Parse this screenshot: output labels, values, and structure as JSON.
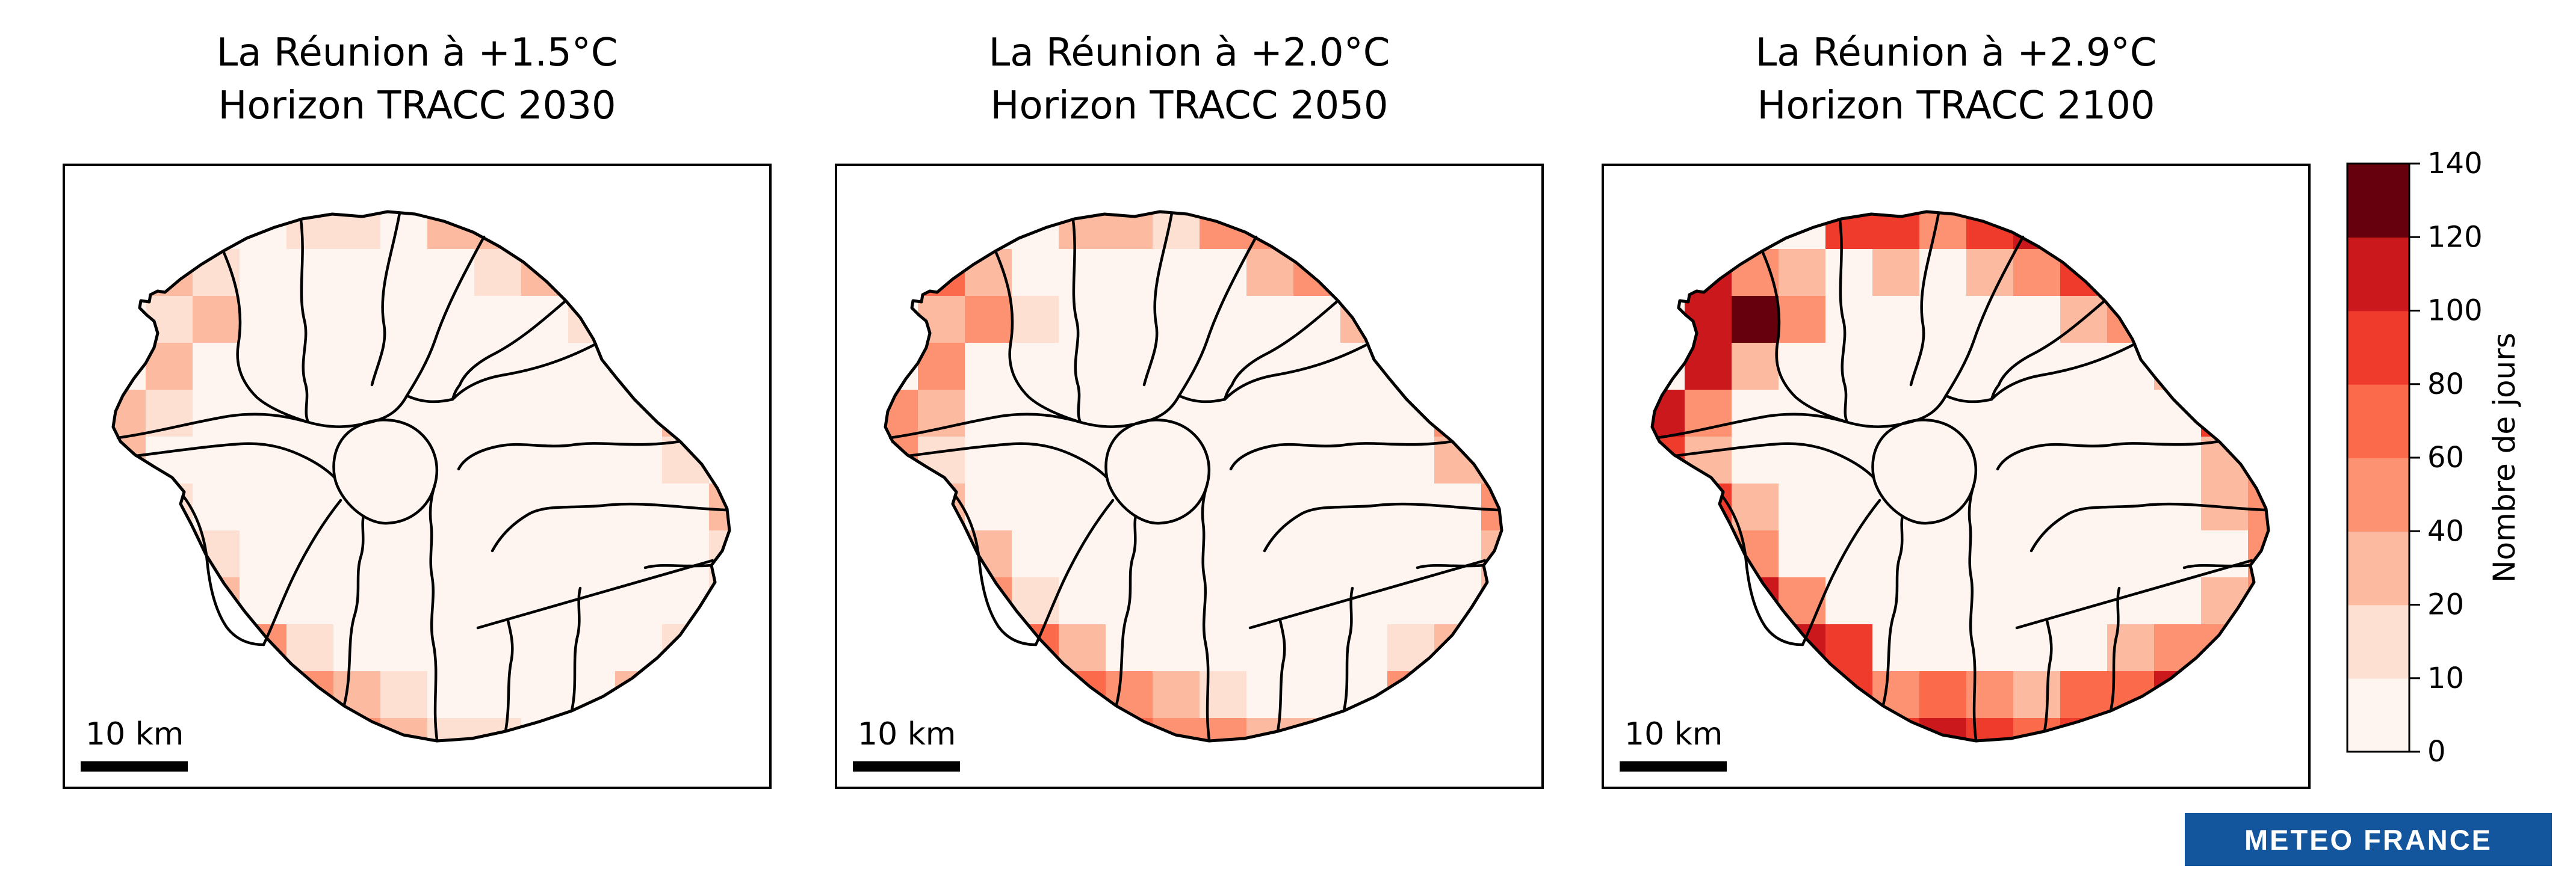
{
  "figure": {
    "background": "#ffffff",
    "region_name": "La Réunion"
  },
  "panels": [
    {
      "title_line1": "La Réunion à +1.5°C",
      "title_line2": "Horizon TRACC 2030",
      "scalebar_label": "10 km",
      "cells": [
        [
          1,
          1,
          25
        ],
        [
          2,
          2,
          25
        ],
        [
          1,
          2,
          15
        ],
        [
          2,
          1,
          15
        ],
        [
          1,
          3,
          25
        ],
        [
          0,
          4,
          25
        ],
        [
          0,
          5,
          25
        ],
        [
          1,
          4,
          15
        ],
        [
          4,
          0,
          15
        ],
        [
          5,
          0,
          15
        ],
        [
          7,
          0,
          25
        ],
        [
          8,
          0,
          25
        ],
        [
          8,
          1,
          15
        ],
        [
          9,
          1,
          25
        ],
        [
          10,
          1,
          25
        ],
        [
          10,
          2,
          15
        ],
        [
          11,
          2,
          25
        ],
        [
          12,
          3,
          25
        ],
        [
          12,
          4,
          25
        ],
        [
          12,
          5,
          15
        ],
        [
          13,
          6,
          25
        ],
        [
          13,
          7,
          15
        ],
        [
          1,
          6,
          15
        ],
        [
          1,
          7,
          25
        ],
        [
          2,
          7,
          15
        ],
        [
          2,
          8,
          25
        ],
        [
          2,
          9,
          15
        ],
        [
          3,
          9,
          45
        ],
        [
          3,
          10,
          45
        ],
        [
          4,
          9,
          15
        ],
        [
          4,
          10,
          45
        ],
        [
          5,
          10,
          25
        ],
        [
          5,
          11,
          45
        ],
        [
          6,
          11,
          25
        ],
        [
          7,
          11,
          15
        ],
        [
          8,
          11,
          15
        ],
        [
          6,
          10,
          15
        ],
        [
          11,
          10,
          25
        ],
        [
          12,
          10,
          25
        ],
        [
          12,
          9,
          15
        ],
        [
          13,
          8,
          15
        ]
      ]
    },
    {
      "title_line1": "La Réunion à +2.0°C",
      "title_line2": "Horizon TRACC 2050",
      "scalebar_label": "10 km",
      "cells": [
        [
          1,
          1,
          65
        ],
        [
          2,
          2,
          45
        ],
        [
          1,
          2,
          25
        ],
        [
          2,
          1,
          25
        ],
        [
          3,
          2,
          15
        ],
        [
          1,
          3,
          45
        ],
        [
          0,
          4,
          45
        ],
        [
          0,
          5,
          45
        ],
        [
          1,
          4,
          25
        ],
        [
          1,
          5,
          15
        ],
        [
          4,
          0,
          25
        ],
        [
          5,
          0,
          25
        ],
        [
          6,
          0,
          15
        ],
        [
          7,
          0,
          45
        ],
        [
          8,
          0,
          45
        ],
        [
          8,
          1,
          25
        ],
        [
          9,
          0,
          25
        ],
        [
          9,
          1,
          45
        ],
        [
          10,
          1,
          65
        ],
        [
          10,
          2,
          25
        ],
        [
          11,
          1,
          45
        ],
        [
          11,
          2,
          65
        ],
        [
          12,
          3,
          45
        ],
        [
          12,
          4,
          45
        ],
        [
          12,
          5,
          25
        ],
        [
          13,
          5,
          25
        ],
        [
          13,
          6,
          45
        ],
        [
          13,
          7,
          25
        ],
        [
          1,
          6,
          25
        ],
        [
          1,
          7,
          45
        ],
        [
          2,
          7,
          25
        ],
        [
          2,
          8,
          45
        ],
        [
          2,
          9,
          45
        ],
        [
          3,
          9,
          65
        ],
        [
          3,
          10,
          65
        ],
        [
          4,
          9,
          25
        ],
        [
          3,
          8,
          15
        ],
        [
          4,
          10,
          65
        ],
        [
          5,
          10,
          45
        ],
        [
          5,
          11,
          65
        ],
        [
          6,
          11,
          45
        ],
        [
          7,
          11,
          45
        ],
        [
          8,
          11,
          25
        ],
        [
          9,
          11,
          25
        ],
        [
          6,
          10,
          25
        ],
        [
          7,
          10,
          15
        ],
        [
          10,
          11,
          15
        ],
        [
          11,
          10,
          45
        ],
        [
          12,
          10,
          45
        ],
        [
          12,
          9,
          25
        ],
        [
          13,
          8,
          25
        ],
        [
          11,
          9,
          15
        ]
      ]
    },
    {
      "title_line1": "La Réunion à +2.9°C",
      "title_line2": "Horizon TRACC 2100",
      "scalebar_label": "10 km",
      "cells": [
        [
          1,
          1,
          105
        ],
        [
          2,
          2,
          135
        ],
        [
          1,
          2,
          105
        ],
        [
          2,
          1,
          45
        ],
        [
          3,
          2,
          45
        ],
        [
          2,
          3,
          25
        ],
        [
          3,
          1,
          25
        ],
        [
          1,
          3,
          105
        ],
        [
          0,
          4,
          105
        ],
        [
          0,
          5,
          85
        ],
        [
          1,
          4,
          45
        ],
        [
          1,
          5,
          25
        ],
        [
          4,
          0,
          85
        ],
        [
          5,
          0,
          85
        ],
        [
          6,
          0,
          45
        ],
        [
          7,
          0,
          85
        ],
        [
          8,
          0,
          105
        ],
        [
          9,
          0,
          105
        ],
        [
          8,
          1,
          45
        ],
        [
          9,
          1,
          85
        ],
        [
          10,
          1,
          105
        ],
        [
          10,
          2,
          45
        ],
        [
          11,
          1,
          105
        ],
        [
          11,
          2,
          105
        ],
        [
          12,
          2,
          105
        ],
        [
          5,
          1,
          25
        ],
        [
          7,
          1,
          25
        ],
        [
          9,
          2,
          25
        ],
        [
          12,
          3,
          85
        ],
        [
          12,
          4,
          85
        ],
        [
          12,
          5,
          25
        ],
        [
          13,
          5,
          45
        ],
        [
          13,
          6,
          45
        ],
        [
          13,
          7,
          45
        ],
        [
          12,
          6,
          25
        ],
        [
          11,
          3,
          25
        ],
        [
          1,
          6,
          85
        ],
        [
          1,
          7,
          105
        ],
        [
          2,
          7,
          45
        ],
        [
          2,
          8,
          105
        ],
        [
          2,
          9,
          85
        ],
        [
          3,
          9,
          105
        ],
        [
          3,
          10,
          105
        ],
        [
          4,
          9,
          85
        ],
        [
          3,
          8,
          45
        ],
        [
          2,
          6,
          25
        ],
        [
          4,
          10,
          85
        ],
        [
          5,
          10,
          45
        ],
        [
          4,
          11,
          105
        ],
        [
          5,
          11,
          85
        ],
        [
          6,
          11,
          105
        ],
        [
          7,
          11,
          85
        ],
        [
          8,
          11,
          65
        ],
        [
          9,
          11,
          85
        ],
        [
          6,
          10,
          65
        ],
        [
          7,
          10,
          45
        ],
        [
          8,
          10,
          25
        ],
        [
          9,
          10,
          65
        ],
        [
          10,
          10,
          65
        ],
        [
          10,
          11,
          65
        ],
        [
          11,
          10,
          105
        ],
        [
          12,
          10,
          105
        ],
        [
          12,
          9,
          45
        ],
        [
          13,
          8,
          45
        ],
        [
          11,
          9,
          45
        ],
        [
          10,
          9,
          25
        ],
        [
          12,
          8,
          25
        ]
      ]
    }
  ],
  "colorbar": {
    "label": "Nombre de jours",
    "tick_labels": [
      "0",
      "10",
      "20",
      "40",
      "60",
      "80",
      "100",
      "120",
      "140"
    ],
    "bounds": [
      0,
      10,
      20,
      40,
      60,
      80,
      100,
      120,
      140
    ],
    "colors": [
      "#fff5f0",
      "#fee0d2",
      "#fcbba1",
      "#fc9272",
      "#fb6a4a",
      "#ef3b2c",
      "#cb181d",
      "#67000d"
    ],
    "base_color": "#fff5f0"
  },
  "logo": {
    "text": "METEO FRANCE",
    "background": "#14569D",
    "text_color": "#ffffff"
  }
}
